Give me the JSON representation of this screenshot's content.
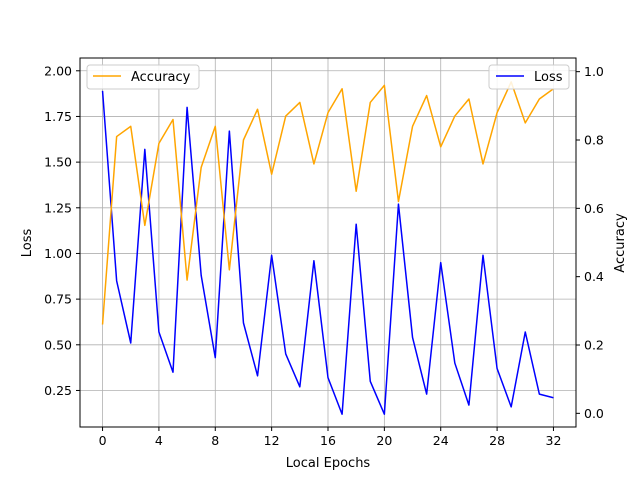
{
  "chart_data": {
    "type": "line",
    "xlabel": "Local Epochs",
    "ylabel_left": "Loss",
    "ylabel_right": "Accuracy",
    "xlim": [
      -1.6,
      33.6
    ],
    "ylim_left": [
      0.05,
      2.07
    ],
    "ylim_right": [
      -0.04,
      1.04
    ],
    "x_ticks": [
      0,
      4,
      8,
      12,
      16,
      20,
      24,
      28,
      32
    ],
    "y_ticks_left": [
      0.25,
      0.5,
      0.75,
      1.0,
      1.25,
      1.5,
      1.75,
      2.0
    ],
    "y_ticks_left_labels": [
      "0.25",
      "0.50",
      "0.75",
      "1.00",
      "1.25",
      "1.50",
      "1.75",
      "2.00"
    ],
    "y_ticks_right": [
      0.0,
      0.2,
      0.4,
      0.6,
      0.8,
      1.0
    ],
    "y_ticks_right_labels": [
      "0.0",
      "0.2",
      "0.4",
      "0.6",
      "0.8",
      "1.0"
    ],
    "grid": true,
    "x": [
      0,
      1,
      2,
      3,
      4,
      5,
      6,
      7,
      8,
      9,
      10,
      11,
      12,
      13,
      14,
      15,
      16,
      17,
      18,
      19,
      20,
      21,
      22,
      23,
      24,
      25,
      26,
      27,
      28,
      29,
      30,
      31,
      32
    ],
    "series": [
      {
        "name": "Loss",
        "axis": "left",
        "color": "#0000ff",
        "legend": "upper right",
        "values": [
          1.89,
          0.85,
          0.51,
          1.57,
          0.57,
          0.35,
          1.8,
          0.88,
          0.43,
          1.67,
          0.62,
          0.33,
          0.99,
          0.45,
          0.27,
          0.96,
          0.32,
          0.12,
          1.16,
          0.3,
          0.12,
          1.27,
          0.54,
          0.23,
          0.95,
          0.4,
          0.17,
          0.99,
          0.37,
          0.16,
          0.57,
          0.23,
          0.21
        ]
      },
      {
        "name": "Accuracy",
        "axis": "right",
        "color": "#ffa500",
        "legend": "upper left",
        "values": [
          0.26,
          0.81,
          0.84,
          0.55,
          0.79,
          0.86,
          0.39,
          0.72,
          0.84,
          0.42,
          0.8,
          0.89,
          0.7,
          0.87,
          0.91,
          0.73,
          0.88,
          0.95,
          0.65,
          0.91,
          0.96,
          0.62,
          0.84,
          0.93,
          0.78,
          0.87,
          0.92,
          0.73,
          0.88,
          0.97,
          0.85,
          0.92,
          0.95
        ]
      }
    ]
  }
}
